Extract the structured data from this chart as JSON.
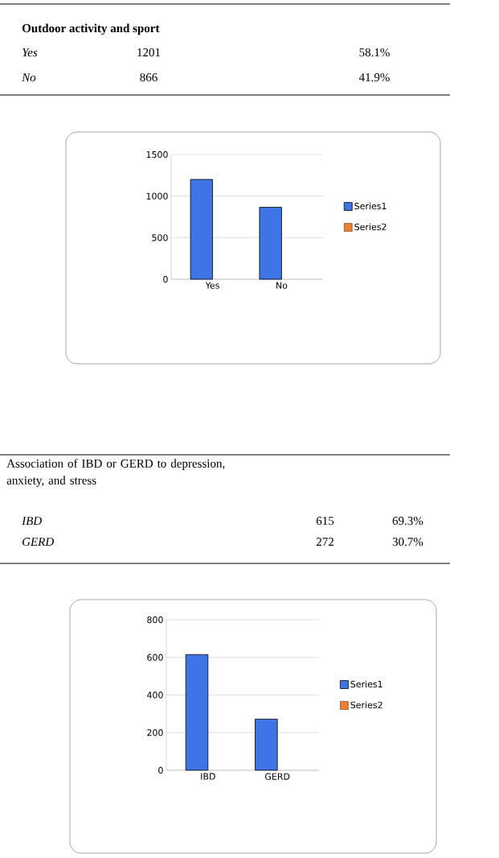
{
  "chart_data": [
    {
      "type": "bar",
      "title": "Outdoor activity and sport",
      "categories": [
        "Yes",
        "No"
      ],
      "series": [
        {
          "name": "Series1",
          "color": "#3f74e6",
          "values": [
            1201,
            866
          ]
        },
        {
          "name": "Series2",
          "color": "#ed7d31",
          "values": [
            null,
            null
          ]
        }
      ],
      "ylim": [
        0,
        1500
      ],
      "yticks": [
        0,
        500,
        1000,
        1500
      ],
      "grid": "y",
      "legend": "right",
      "annotations": [
        "1201",
        "58.1%",
        "866",
        "41.9%"
      ]
    },
    {
      "type": "bar",
      "title": "Association of IBD or GERD to depression, anxiety, and stress",
      "categories": [
        "IBD",
        "GERD"
      ],
      "series": [
        {
          "name": "Series1",
          "color": "#3f74e6",
          "values": [
            615,
            272
          ]
        },
        {
          "name": "Series2",
          "color": "#ed7d31",
          "values": [
            null,
            null
          ]
        }
      ],
      "ylim": [
        0,
        800
      ],
      "yticks": [
        0,
        200,
        400,
        600,
        800
      ],
      "grid": "y",
      "legend": "right",
      "annotations": [
        "615",
        "69.3%",
        "272",
        "30.7%"
      ]
    }
  ]
}
